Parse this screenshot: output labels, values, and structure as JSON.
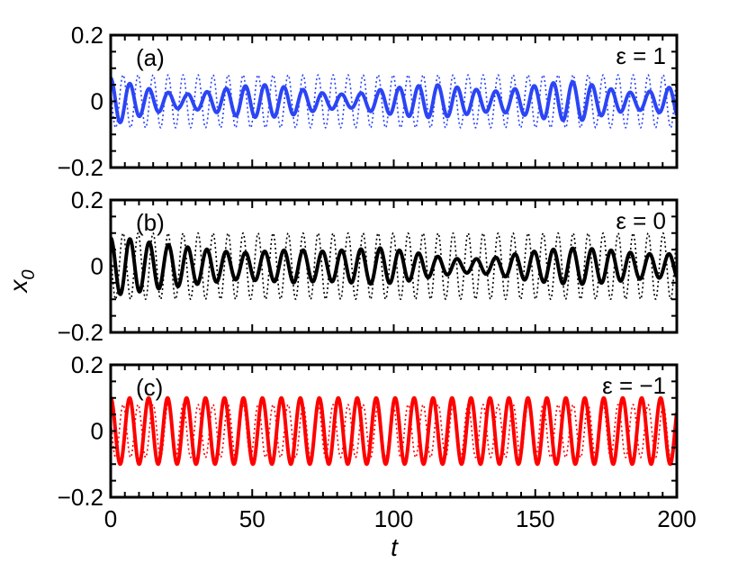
{
  "figure": {
    "ylabel": "x",
    "ylabel_sub": "0",
    "xlabel": "t",
    "x_ticks": [
      "0",
      "50",
      "100",
      "150",
      "200"
    ]
  },
  "chart_data": [
    {
      "type": "line",
      "panel_label": "(a)",
      "annotation": "ε = 1",
      "color": "#2b45f5",
      "xlim": [
        0,
        200
      ],
      "ylim": [
        -0.2,
        0.2
      ],
      "y_ticks": [
        "0.2",
        "0",
        "−0.2"
      ],
      "grid": false,
      "series": [
        {
          "style": "solid",
          "period": 6.8,
          "envelope_t": [
            0,
            3,
            8,
            15,
            25,
            35,
            45,
            55,
            65,
            75,
            85,
            95,
            105,
            115,
            125,
            135,
            145,
            155,
            165,
            175,
            185,
            195,
            200
          ],
          "envelope_amp": [
            0.07,
            0.065,
            0.05,
            0.035,
            0.02,
            0.03,
            0.045,
            0.05,
            0.04,
            0.025,
            0.02,
            0.035,
            0.045,
            0.05,
            0.04,
            0.03,
            0.04,
            0.055,
            0.06,
            0.04,
            0.025,
            0.035,
            0.05
          ]
        },
        {
          "style": "dotted",
          "period": 5.3,
          "envelope_t": [
            0,
            50,
            100,
            150,
            200
          ],
          "envelope_amp": [
            0.08,
            0.08,
            0.08,
            0.08,
            0.08
          ]
        }
      ]
    },
    {
      "type": "line",
      "panel_label": "(b)",
      "annotation": "ε = 0",
      "color": "#000000",
      "xlim": [
        0,
        200
      ],
      "ylim": [
        -0.2,
        0.2
      ],
      "y_ticks": [
        "0.2",
        "0",
        "−0.2"
      ],
      "grid": false,
      "series": [
        {
          "style": "solid",
          "period": 6.8,
          "envelope_t": [
            0,
            5,
            15,
            25,
            35,
            45,
            55,
            65,
            75,
            85,
            95,
            105,
            115,
            125,
            135,
            145,
            155,
            165,
            175,
            185,
            195,
            200
          ],
          "envelope_amp": [
            0.085,
            0.085,
            0.07,
            0.06,
            0.05,
            0.04,
            0.045,
            0.05,
            0.045,
            0.05,
            0.055,
            0.045,
            0.03,
            0.02,
            0.025,
            0.04,
            0.05,
            0.055,
            0.05,
            0.04,
            0.035,
            0.04
          ]
        },
        {
          "style": "dotted",
          "period": 5.3,
          "envelope_t": [
            0,
            50,
            100,
            150,
            200
          ],
          "envelope_amp": [
            0.1,
            0.1,
            0.1,
            0.1,
            0.1
          ]
        }
      ]
    },
    {
      "type": "line",
      "panel_label": "(c)",
      "annotation": "ε = −1",
      "color": "#ff0000",
      "xlim": [
        0,
        200
      ],
      "ylim": [
        -0.2,
        0.2
      ],
      "y_ticks": [
        "0.2",
        "0",
        "−0.2"
      ],
      "grid": false,
      "series": [
        {
          "style": "solid",
          "period": 6.7,
          "envelope_t": [
            0,
            50,
            100,
            150,
            200
          ],
          "envelope_amp": [
            0.1,
            0.1,
            0.1,
            0.1,
            0.1
          ]
        },
        {
          "style": "dotted",
          "period": 5.3,
          "envelope_t": [
            0,
            50,
            100,
            150,
            200
          ],
          "envelope_amp": [
            0.08,
            0.08,
            0.08,
            0.08,
            0.08
          ]
        }
      ]
    }
  ]
}
